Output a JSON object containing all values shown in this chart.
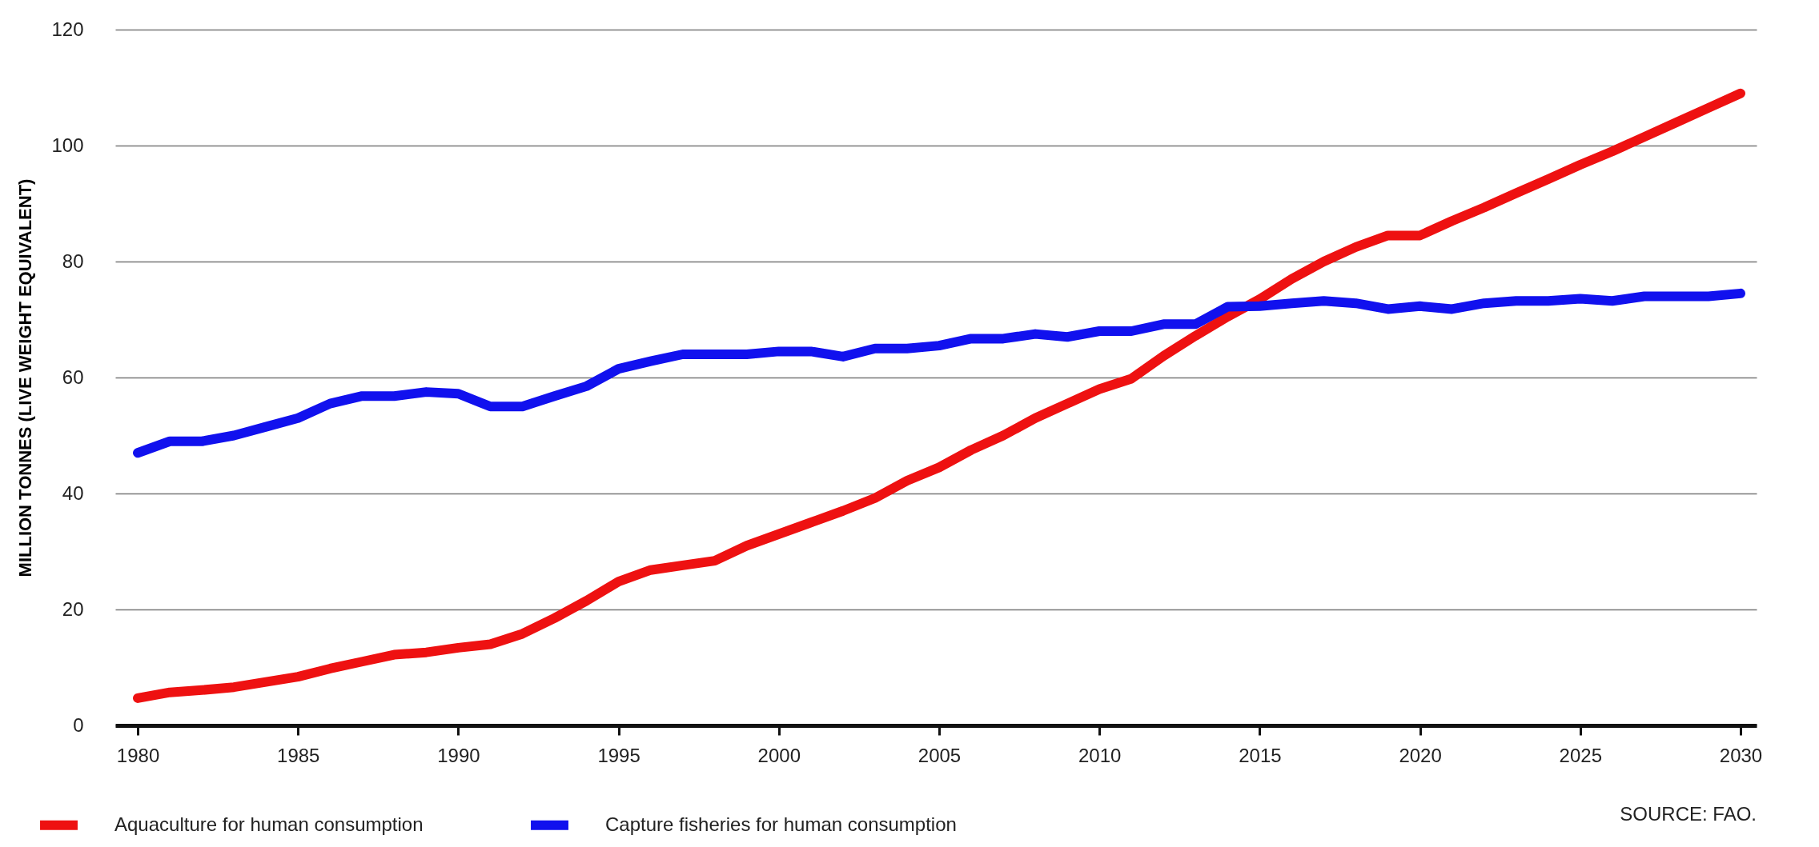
{
  "chart_data": {
    "type": "line",
    "ylabel": "MILLION TONNES (LIVE WEIGHT EQUIVALENT)",
    "x": [
      1980,
      1981,
      1982,
      1983,
      1984,
      1985,
      1986,
      1987,
      1988,
      1989,
      1990,
      1991,
      1992,
      1993,
      1994,
      1995,
      1996,
      1997,
      1998,
      1999,
      2000,
      2001,
      2002,
      2003,
      2004,
      2005,
      2006,
      2007,
      2008,
      2009,
      2010,
      2011,
      2012,
      2013,
      2014,
      2015,
      2016,
      2017,
      2018,
      2019,
      2020,
      2021,
      2022,
      2023,
      2024,
      2025,
      2026,
      2027,
      2028,
      2029,
      2030
    ],
    "series": [
      {
        "name": "Aquaculture for human consumption",
        "color": "#ee1111",
        "values": [
          4.7,
          5.7,
          6.1,
          6.6,
          7.5,
          8.4,
          9.8,
          11,
          12.2,
          12.6,
          13.4,
          14,
          15.8,
          18.5,
          21.5,
          24.8,
          26.8,
          27.6,
          28.4,
          31,
          33,
          35,
          37,
          39.2,
          42.2,
          44.5,
          47.5,
          50,
          53,
          55.5,
          58,
          59.8,
          63.7,
          67.2,
          70.5,
          73.5,
          77,
          80,
          82.5,
          84.5,
          84.5,
          87,
          89.3,
          91.8,
          94.2,
          96.7,
          99,
          101.5,
          104,
          106.5,
          109
        ]
      },
      {
        "name": "Capture fisheries for human consumption",
        "color": "#1111ee",
        "values": [
          47,
          49,
          49,
          50,
          51.5,
          53,
          55.5,
          56.8,
          56.8,
          57.5,
          57.2,
          55,
          55,
          56.8,
          58.5,
          61.5,
          62.8,
          64,
          64,
          64,
          64.5,
          64.5,
          63.6,
          65,
          65,
          65.5,
          66.7,
          66.7,
          67.5,
          67,
          68,
          68,
          69.2,
          69.2,
          72.2,
          72.3,
          72.8,
          73.2,
          72.8,
          71.8,
          72.3,
          71.8,
          72.8,
          73.2,
          73.2,
          73.6,
          73.2,
          74,
          74,
          74,
          74.5
        ]
      }
    ],
    "xlim": [
      1979.3,
      2030.5
    ],
    "xticks": [
      1980,
      1985,
      1990,
      1995,
      2000,
      2005,
      2010,
      2015,
      2020,
      2025,
      2030
    ],
    "ylim": [
      0,
      120
    ],
    "yticks": [
      0,
      20,
      40,
      60,
      80,
      100,
      120
    ],
    "grid": "y",
    "legend": "bottom",
    "line_style": "solid",
    "annotations": [
      "SOURCE: FAO."
    ]
  }
}
